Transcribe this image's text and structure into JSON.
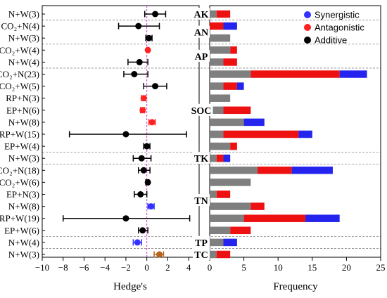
{
  "chart_data": {
    "type": "forest-and-stacked-bar",
    "legend": [
      {
        "name": "Synergistic",
        "color": "#3333ff"
      },
      {
        "name": "Antagonistic",
        "color": "#ff2222"
      },
      {
        "name": "Additive",
        "color": "#000000"
      }
    ],
    "left_panel": {
      "xlabel": "Hedge's",
      "xlim": [
        -10,
        5
      ],
      "xticks": [
        "−10",
        "−8",
        "−6",
        "−4",
        "−2",
        "0",
        "2",
        "4"
      ],
      "xtick_values": [
        -10,
        -8,
        -6,
        -4,
        -2,
        0,
        2,
        4
      ],
      "rows": [
        {
          "label": "N+W",
          "n": "(3)",
          "effect": 0.8,
          "ci_low": -0.2,
          "ci_high": 1.8,
          "type": "Additive",
          "color": "#000000"
        },
        {
          "label": "CO₂+N",
          "n": "(4)",
          "effect": -0.8,
          "ci_low": -2.7,
          "ci_high": 1.2,
          "type": "Additive",
          "color": "#000000"
        },
        {
          "label": "N+W",
          "n": "(3)",
          "effect": 0.2,
          "ci_low": -0.1,
          "ci_high": 0.5,
          "type": "Additive",
          "color": "#000000"
        },
        {
          "label": "CO₂+W",
          "n": "(4)",
          "effect": 0.1,
          "ci_low": 0.0,
          "ci_high": 0.2,
          "type": "Antagonistic",
          "color": "#ff2222"
        },
        {
          "label": "N+W",
          "n": "(4)",
          "effect": -0.7,
          "ci_low": -1.8,
          "ci_high": 0.1,
          "type": "Additive",
          "color": "#000000"
        },
        {
          "label": "CO₂+N",
          "n": "(23)",
          "effect": -1.2,
          "ci_low": -2.2,
          "ci_high": 0.1,
          "type": "Additive",
          "color": "#000000"
        },
        {
          "label": "CO₂+W",
          "n": "(5)",
          "effect": 0.8,
          "ci_low": -0.3,
          "ci_high": 1.9,
          "type": "Additive",
          "color": "#000000"
        },
        {
          "label": "RP+N",
          "n": "(3)",
          "effect": -0.3,
          "ci_low": -0.5,
          "ci_high": -0.1,
          "type": "Antagonistic",
          "color": "#ff2222"
        },
        {
          "label": "EP+N",
          "n": "(6)",
          "effect": -0.4,
          "ci_low": -0.6,
          "ci_high": -0.2,
          "type": "Antagonistic",
          "color": "#ff2222"
        },
        {
          "label": "N+W",
          "n": "(8)",
          "effect": 0.5,
          "ci_low": 0.2,
          "ci_high": 0.8,
          "type": "Antagonistic",
          "color": "#ff2222"
        },
        {
          "label": "RP+W",
          "n": "(15)",
          "effect": -2.0,
          "ci_low": -7.4,
          "ci_high": 3.8,
          "type": "Additive",
          "color": "#000000"
        },
        {
          "label": "EP+W",
          "n": "(4)",
          "effect": 0.0,
          "ci_low": -0.3,
          "ci_high": 0.3,
          "type": "Additive",
          "color": "#000000"
        },
        {
          "label": "N+W",
          "n": "(3)",
          "effect": -0.5,
          "ci_low": -1.3,
          "ci_high": 0.4,
          "type": "Additive",
          "color": "#000000"
        },
        {
          "label": "CO₂+N",
          "n": "(18)",
          "effect": -0.3,
          "ci_low": -0.8,
          "ci_high": 0.3,
          "type": "Additive",
          "color": "#000000"
        },
        {
          "label": "CO₂+W",
          "n": "(6)",
          "effect": 0.1,
          "ci_low": -0.1,
          "ci_high": 0.2,
          "type": "Additive",
          "color": "#000000"
        },
        {
          "label": "EP+N",
          "n": "(3)",
          "effect": -0.6,
          "ci_low": -1.2,
          "ci_high": 0.0,
          "type": "Additive",
          "color": "#000000"
        },
        {
          "label": "N+W",
          "n": "(8)",
          "effect": 0.4,
          "ci_low": 0.1,
          "ci_high": 0.7,
          "type": "Synergistic",
          "color": "#3333ff"
        },
        {
          "label": "RP+W",
          "n": "(19)",
          "effect": -2.0,
          "ci_low": -8.0,
          "ci_high": 4.1,
          "type": "Additive",
          "color": "#000000"
        },
        {
          "label": "EP+W",
          "n": "(6)",
          "effect": -0.4,
          "ci_low": -0.8,
          "ci_high": 0.1,
          "type": "Additive",
          "color": "#000000"
        },
        {
          "label": "N+W",
          "n": "(4)",
          "effect": -0.9,
          "ci_low": -1.3,
          "ci_high": -0.5,
          "type": "Synergistic",
          "color": "#3333ff"
        },
        {
          "label": "N+W",
          "n": "(3)",
          "effect": 1.2,
          "ci_low": 0.7,
          "ci_high": 1.6,
          "type": "Mixed",
          "color": "#b5651d"
        }
      ],
      "groups": [
        {
          "name": "AK",
          "first_row": 0,
          "last_row": 0
        },
        {
          "name": "AN",
          "first_row": 1,
          "last_row": 2
        },
        {
          "name": "AP",
          "first_row": 3,
          "last_row": 4
        },
        {
          "name": "SOC",
          "first_row": 5,
          "last_row": 11
        },
        {
          "name": "TK",
          "first_row": 12,
          "last_row": 12
        },
        {
          "name": "TN",
          "first_row": 13,
          "last_row": 18
        },
        {
          "name": "TP",
          "first_row": 19,
          "last_row": 19
        },
        {
          "name": "TC",
          "first_row": 20,
          "last_row": 20
        }
      ],
      "separators_after_rows": [
        0,
        2,
        4,
        11,
        12,
        18,
        19
      ]
    },
    "right_panel": {
      "xlabel": "Frequency",
      "xlim": [
        0,
        25
      ],
      "xticks": [
        "0",
        "5",
        "10",
        "15",
        "20",
        "25"
      ],
      "xtick_values": [
        0,
        5,
        10,
        15,
        20,
        25
      ],
      "segment_colors": {
        "additive": "#7f7f7f",
        "antagonistic": "#ee1111",
        "synergistic": "#2424ee"
      },
      "bars": [
        {
          "row": 0,
          "additive": 1,
          "antagonistic": 2,
          "synergistic": 0
        },
        {
          "row": 1,
          "additive": 0,
          "antagonistic": 2,
          "synergistic": 2
        },
        {
          "row": 2,
          "additive": 3,
          "antagonistic": 0,
          "synergistic": 0
        },
        {
          "row": 3,
          "additive": 3,
          "antagonistic": 1,
          "synergistic": 0
        },
        {
          "row": 4,
          "additive": 2,
          "antagonistic": 2,
          "synergistic": 0
        },
        {
          "row": 5,
          "additive": 6,
          "antagonistic": 13,
          "synergistic": 4
        },
        {
          "row": 6,
          "additive": 2,
          "antagonistic": 2,
          "synergistic": 1
        },
        {
          "row": 7,
          "additive": 3,
          "antagonistic": 0,
          "synergistic": 0
        },
        {
          "row": 8,
          "additive": 2,
          "antagonistic": 4,
          "synergistic": 0
        },
        {
          "row": 9,
          "additive": 5,
          "antagonistic": 0,
          "synergistic": 3
        },
        {
          "row": 10,
          "additive": 2,
          "antagonistic": 11,
          "synergistic": 2
        },
        {
          "row": 11,
          "additive": 3,
          "antagonistic": 1,
          "synergistic": 0
        },
        {
          "row": 12,
          "additive": 1,
          "antagonistic": 1,
          "synergistic": 1
        },
        {
          "row": 13,
          "additive": 7,
          "antagonistic": 5,
          "synergistic": 6
        },
        {
          "row": 14,
          "additive": 6,
          "antagonistic": 0,
          "synergistic": 0
        },
        {
          "row": 15,
          "additive": 1,
          "antagonistic": 2,
          "synergistic": 0
        },
        {
          "row": 16,
          "additive": 6,
          "antagonistic": 2,
          "synergistic": 0
        },
        {
          "row": 17,
          "additive": 5,
          "antagonistic": 9,
          "synergistic": 5
        },
        {
          "row": 18,
          "additive": 3,
          "antagonistic": 3,
          "synergistic": 0
        },
        {
          "row": 19,
          "additive": 2,
          "antagonistic": 0,
          "synergistic": 2
        },
        {
          "row": 20,
          "additive": 1,
          "antagonistic": 2,
          "synergistic": 0
        }
      ]
    }
  }
}
